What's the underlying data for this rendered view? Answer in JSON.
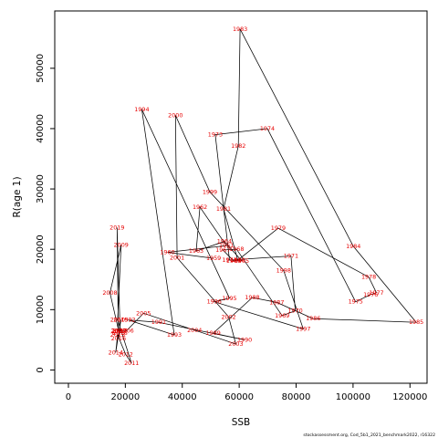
{
  "chart_data": {
    "type": "line",
    "xlabel": "SSB",
    "ylabel": "R(age 1)",
    "xlim": [
      -4800,
      126000
    ],
    "ylim": [
      -2200,
      59500
    ],
    "xticks": [
      0,
      20000,
      40000,
      60000,
      80000,
      100000,
      120000
    ],
    "yticks": [
      0,
      10000,
      20000,
      30000,
      40000,
      50000
    ],
    "line_color": "#000000",
    "label_color": "#e60000",
    "footnote": "stockassessment.org, Cod_5b1_2021_benchmark2022, r16322",
    "points": [
      {
        "year": "1959",
        "x": 51000,
        "y": 18500
      },
      {
        "year": "1960",
        "x": 34800,
        "y": 19500
      },
      {
        "year": "1961",
        "x": 55500,
        "y": 20600
      },
      {
        "year": "1962",
        "x": 46200,
        "y": 27000
      },
      {
        "year": "1963",
        "x": 44900,
        "y": 19700
      },
      {
        "year": "1964",
        "x": 54800,
        "y": 21300
      },
      {
        "year": "1965",
        "x": 60900,
        "y": 18100
      },
      {
        "year": "1966",
        "x": 58000,
        "y": 18100
      },
      {
        "year": "1967",
        "x": 54300,
        "y": 19900
      },
      {
        "year": "1968",
        "x": 59100,
        "y": 20000
      },
      {
        "year": "1969",
        "x": 75100,
        "y": 9000
      },
      {
        "year": "1970",
        "x": 79700,
        "y": 9800
      },
      {
        "year": "1971",
        "x": 78200,
        "y": 18900
      },
      {
        "year": "1972",
        "x": 56600,
        "y": 18200
      },
      {
        "year": "1973",
        "x": 51600,
        "y": 39000
      },
      {
        "year": "1974",
        "x": 69900,
        "y": 40000
      },
      {
        "year": "1975",
        "x": 100900,
        "y": 11300
      },
      {
        "year": "1976",
        "x": 106200,
        "y": 12500
      },
      {
        "year": "1977",
        "x": 108200,
        "y": 12800
      },
      {
        "year": "1978",
        "x": 105500,
        "y": 15400
      },
      {
        "year": "1979",
        "x": 73700,
        "y": 23500
      },
      {
        "year": "1980",
        "x": 59500,
        "y": 18200
      },
      {
        "year": "1981",
        "x": 54500,
        "y": 26700
      },
      {
        "year": "1982",
        "x": 59700,
        "y": 37100
      },
      {
        "year": "1983",
        "x": 60300,
        "y": 56500
      },
      {
        "year": "1984",
        "x": 100100,
        "y": 20500
      },
      {
        "year": "1985",
        "x": 122200,
        "y": 7900
      },
      {
        "year": "1986",
        "x": 86000,
        "y": 8500
      },
      {
        "year": "1987",
        "x": 73200,
        "y": 11200
      },
      {
        "year": "1988",
        "x": 64600,
        "y": 12000
      },
      {
        "year": "1989",
        "x": 50900,
        "y": 6100
      },
      {
        "year": "1990",
        "x": 61900,
        "y": 5000
      },
      {
        "year": "1991",
        "x": 31700,
        "y": 7900
      },
      {
        "year": "1992",
        "x": 21000,
        "y": 8300
      },
      {
        "year": "1993",
        "x": 37200,
        "y": 5800
      },
      {
        "year": "1994",
        "x": 25800,
        "y": 43200
      },
      {
        "year": "1995",
        "x": 56600,
        "y": 11900
      },
      {
        "year": "1996",
        "x": 51200,
        "y": 11300
      },
      {
        "year": "1997",
        "x": 82500,
        "y": 6800
      },
      {
        "year": "1998",
        "x": 75600,
        "y": 16500
      },
      {
        "year": "1999",
        "x": 49700,
        "y": 29500
      },
      {
        "year": "2000",
        "x": 37600,
        "y": 42200
      },
      {
        "year": "2001",
        "x": 38200,
        "y": 18600
      },
      {
        "year": "2002",
        "x": 56300,
        "y": 8800
      },
      {
        "year": "2003",
        "x": 58800,
        "y": 4300
      },
      {
        "year": "2004",
        "x": 44300,
        "y": 6600
      },
      {
        "year": "2005",
        "x": 26400,
        "y": 9400
      },
      {
        "year": "2006",
        "x": 20400,
        "y": 6500
      },
      {
        "year": "2007",
        "x": 17700,
        "y": 6400
      },
      {
        "year": "2008",
        "x": 14600,
        "y": 12800
      },
      {
        "year": "2009",
        "x": 18500,
        "y": 20700
      },
      {
        "year": "2010",
        "x": 17300,
        "y": 8300
      },
      {
        "year": "2011",
        "x": 22200,
        "y": 1100
      },
      {
        "year": "2012",
        "x": 20100,
        "y": 2600
      },
      {
        "year": "2013",
        "x": 17300,
        "y": 5800
      },
      {
        "year": "2014",
        "x": 16600,
        "y": 2900
      },
      {
        "year": "2015",
        "x": 18400,
        "y": 8300
      },
      {
        "year": "2016",
        "x": 17600,
        "y": 5200
      },
      {
        "year": "2017",
        "x": 18100,
        "y": 6500
      },
      {
        "year": "2018",
        "x": 18200,
        "y": 6100
      },
      {
        "year": "2019",
        "x": 17100,
        "y": 23600
      },
      {
        "year": "2020",
        "x": 17500,
        "y": 6500
      }
    ]
  }
}
